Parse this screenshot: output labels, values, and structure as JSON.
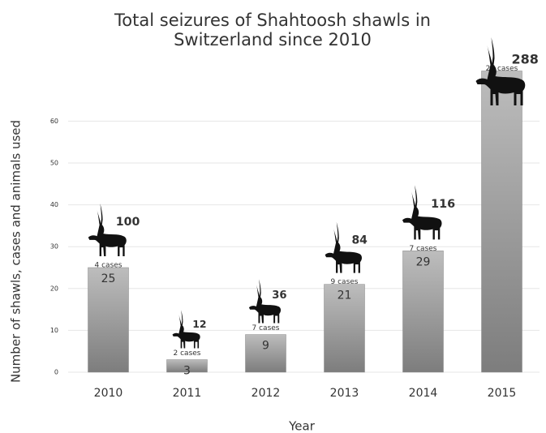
{
  "chart_data": {
    "type": "bar",
    "title": [
      "Total seizures of Shahtoosh shawls in",
      "Switzerland since 2010"
    ],
    "x_label": "Year",
    "y_label": "Number of shawls, cases and animals used",
    "categories": [
      "2010",
      "2011",
      "2012",
      "2013",
      "2014",
      "2015"
    ],
    "values": [
      25,
      3,
      9,
      21,
      29,
      72
    ],
    "case_labels": [
      "4 cases",
      "2 cases",
      "7 cases",
      "9 cases",
      "7 cases",
      "27 cases"
    ],
    "animals": [
      100,
      12,
      36,
      84,
      116,
      288
    ],
    "color": "#9a9a9a",
    "ylim": [
      0,
      75
    ],
    "yticks": [
      0,
      10,
      20,
      30,
      40,
      50,
      60
    ],
    "grid": true
  }
}
